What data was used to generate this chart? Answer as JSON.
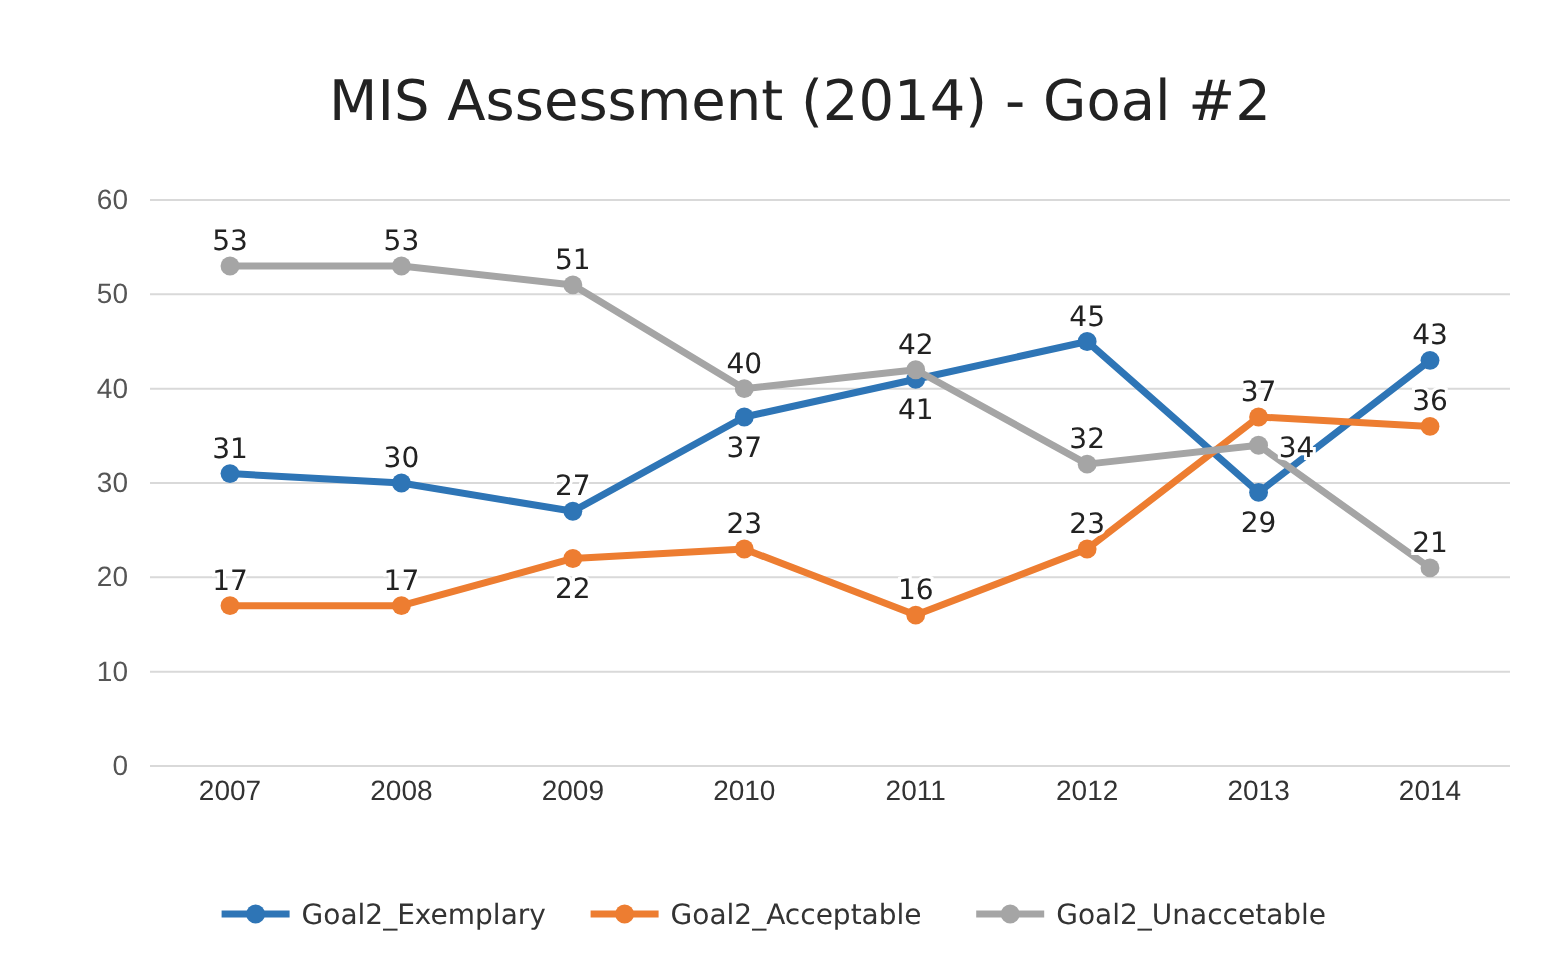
{
  "chart_data": {
    "type": "line",
    "title": "MIS Assessment (2014) - Goal #2",
    "categories": [
      "2007",
      "2008",
      "2009",
      "2010",
      "2011",
      "2012",
      "2013",
      "2014"
    ],
    "series": [
      {
        "name": "Goal2_Exemplary",
        "color": "#2e75b6",
        "values": [
          31,
          30,
          27,
          37,
          41,
          45,
          29,
          43
        ]
      },
      {
        "name": "Goal2_Acceptable",
        "color": "#ed7d31",
        "values": [
          17,
          17,
          22,
          23,
          16,
          23,
          37,
          36
        ]
      },
      {
        "name": "Goal2_Unaccetable",
        "color": "#a5a5a5",
        "values": [
          53,
          53,
          51,
          40,
          42,
          32,
          34,
          21
        ]
      }
    ],
    "ylim": [
      0,
      60
    ],
    "yticks": [
      0,
      10,
      20,
      30,
      40,
      50,
      60
    ],
    "grid": "y",
    "legend": "bottom",
    "marker": "circle",
    "line_style": "solid",
    "data_labels": true
  }
}
